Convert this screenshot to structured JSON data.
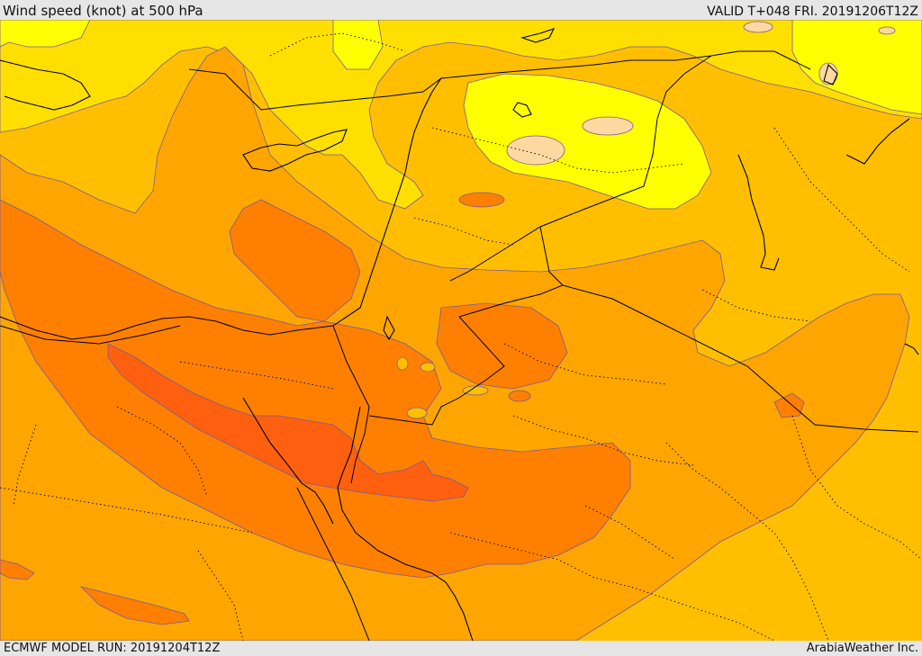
{
  "header": {
    "title": "Wind speed (knot) at 500 hPa",
    "valid": "VALID T+048 FRI. 20191206T12Z"
  },
  "footer": {
    "model_run": "ECMWF MODEL RUN: 20191204T12Z",
    "credit": "ArabiaWeather Inc."
  },
  "field": {
    "variable": "wind speed",
    "unit": "knot",
    "level": "500 hPa",
    "colors": {
      "band_lightest": "#fdd9a1",
      "band_yellow": "#ffff00",
      "band_gold": "#ffdf00",
      "band_amber": "#ffbf00",
      "band_orange_light": "#ffa500",
      "band_orange": "#ff8000",
      "band_orange_dark": "#ff6010",
      "contour": "#7a5a9a",
      "coastline": "#000000",
      "border": "#000000"
    }
  }
}
